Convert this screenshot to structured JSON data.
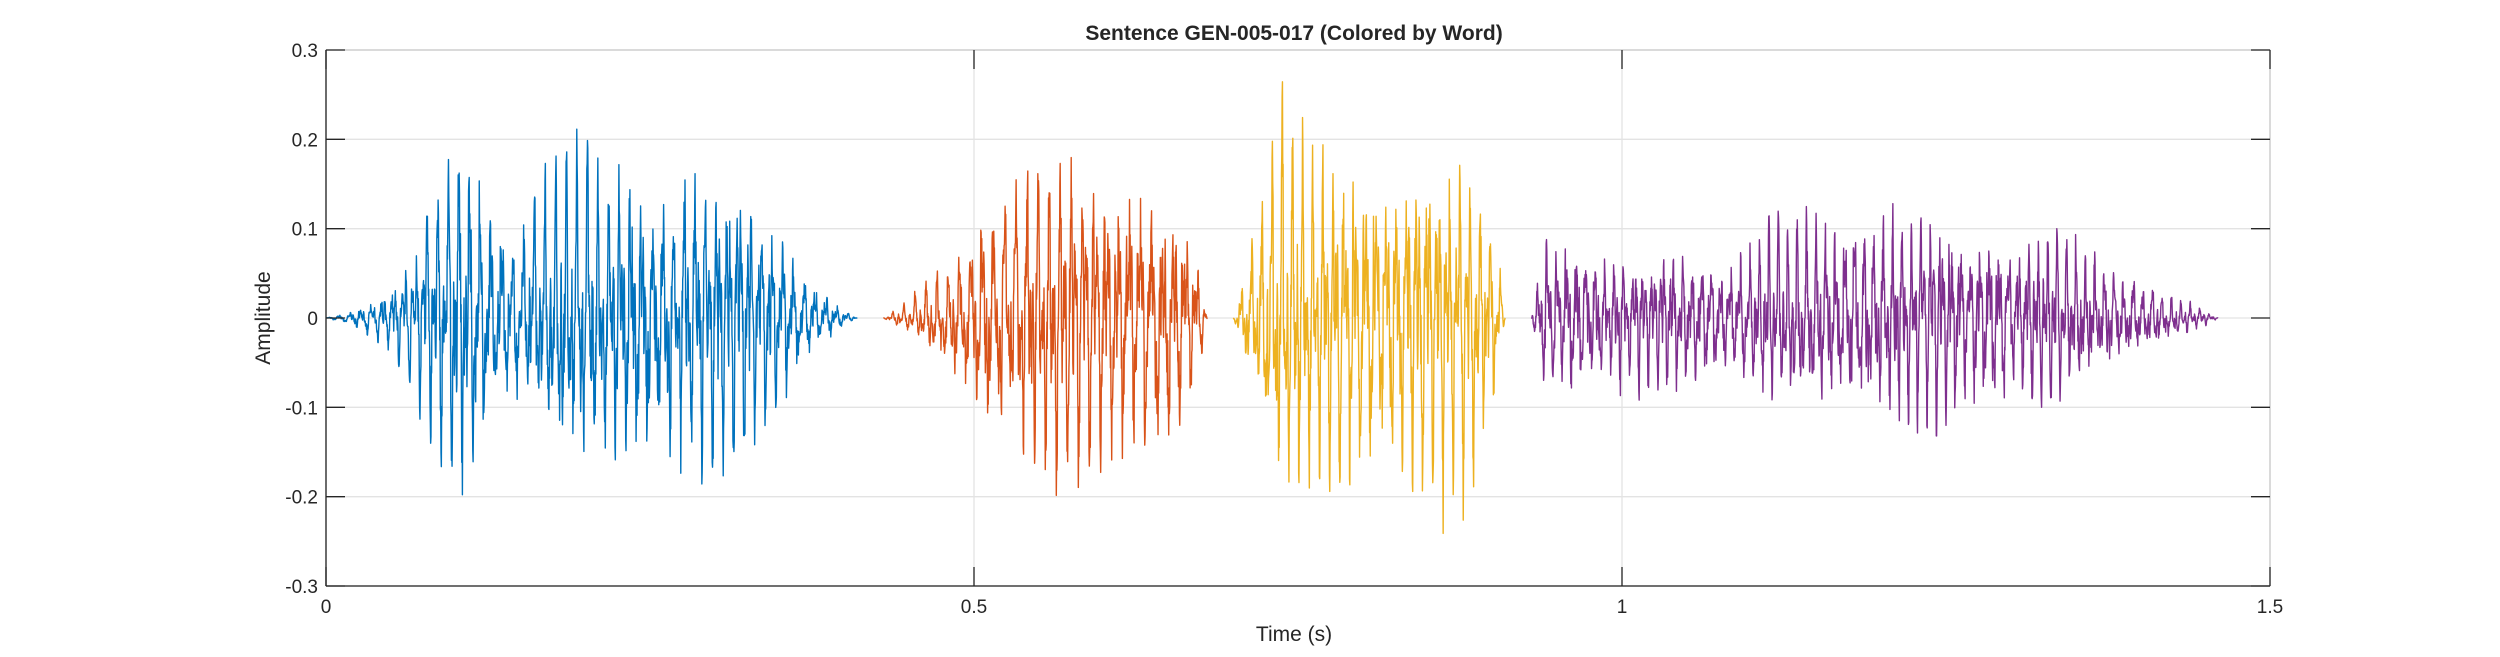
{
  "chart_data": {
    "type": "line",
    "title": "Sentence GEN-005-017 (Colored by Word)",
    "xlabel": "Time (s)",
    "ylabel": "Amplitude",
    "xlim": [
      0,
      1.5
    ],
    "ylim": [
      -0.3,
      0.3
    ],
    "x_ticks": [
      0,
      0.5,
      1,
      1.5
    ],
    "x_tick_labels": [
      "0",
      "0.5",
      "1",
      "1.5"
    ],
    "y_ticks": [
      0.3,
      0.2,
      0.1,
      0,
      -0.1,
      -0.2,
      -0.3
    ],
    "y_tick_labels": [
      "0.3",
      "0.2",
      "0.1",
      "0",
      "-0.1",
      "-0.2",
      "-0.3"
    ],
    "grid": true,
    "legend": "none",
    "series": [
      {
        "color": "#0072BD",
        "x_range": [
          0.0,
          0.41
        ],
        "envelope_time": [
          0.0,
          0.02,
          0.05,
          0.07,
          0.09,
          0.105,
          0.12,
          0.14,
          0.16,
          0.18,
          0.2,
          0.24,
          0.28,
          0.32,
          0.36,
          0.38,
          0.4,
          0.41
        ],
        "envelope_amplitude": [
          0.0,
          0.01,
          0.04,
          0.09,
          0.2,
          0.24,
          0.2,
          0.12,
          0.15,
          0.18,
          0.19,
          0.2,
          0.2,
          0.17,
          0.1,
          0.04,
          0.01,
          0.0
        ],
        "pitch_hz": 120
      },
      {
        "color": "#D95319",
        "x_range": [
          0.43,
          0.68
        ],
        "envelope_time": [
          0.43,
          0.45,
          0.48,
          0.51,
          0.54,
          0.57,
          0.6,
          0.63,
          0.66,
          0.675,
          0.68
        ],
        "envelope_amplitude": [
          0.0,
          0.02,
          0.07,
          0.16,
          0.19,
          0.2,
          0.18,
          0.2,
          0.16,
          0.05,
          0.0
        ],
        "pitch_hz": 115
      },
      {
        "color": "#EDB120",
        "x_range": [
          0.7,
          0.91
        ],
        "envelope_time": [
          0.7,
          0.71,
          0.725,
          0.735,
          0.76,
          0.8,
          0.84,
          0.87,
          0.89,
          0.905,
          0.91
        ],
        "envelope_amplitude": [
          0.0,
          0.07,
          0.18,
          0.26,
          0.2,
          0.22,
          0.21,
          0.22,
          0.18,
          0.08,
          0.0
        ],
        "pitch_hz": 125
      },
      {
        "color": "#7E2F8E",
        "x_range": [
          0.93,
          1.46
        ],
        "envelope_time": [
          0.93,
          0.94,
          0.96,
          0.98,
          1.02,
          1.06,
          1.08,
          1.1,
          1.14,
          1.18,
          1.22,
          1.28,
          1.34,
          1.38,
          1.42,
          1.45,
          1.46
        ],
        "envelope_amplitude": [
          0.0,
          0.1,
          0.12,
          0.09,
          0.08,
          0.1,
          0.07,
          0.1,
          0.12,
          0.14,
          0.13,
          0.12,
          0.1,
          0.07,
          0.03,
          0.01,
          0.0
        ],
        "pitch_hz": 135
      }
    ]
  }
}
